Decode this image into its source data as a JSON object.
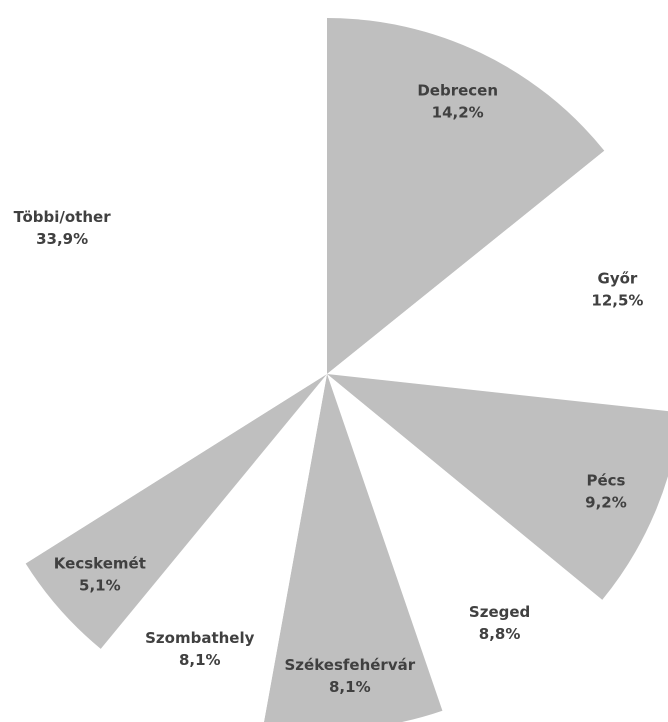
{
  "chart_data": {
    "type": "pie",
    "categories": [
      "Debrecen",
      "Győr",
      "Pécs",
      "Szeged",
      "Székesfehérvár",
      "Szombathely",
      "Kecskemét",
      "Többi/other"
    ],
    "values": [
      14.2,
      12.5,
      9.2,
      8.8,
      8.1,
      8.1,
      5.1,
      33.9
    ],
    "value_labels": [
      "14,2%",
      "12,5%",
      "9,2%",
      "8,8%",
      "8,1%",
      "8,1%",
      "5,1%",
      "33,9%"
    ],
    "colors": [
      "#bfbfbf",
      "#ffffff",
      "#bfbfbf",
      "#ffffff",
      "#bfbfbf",
      "#ffffff",
      "#bfbfbf",
      "#ffffff"
    ]
  }
}
